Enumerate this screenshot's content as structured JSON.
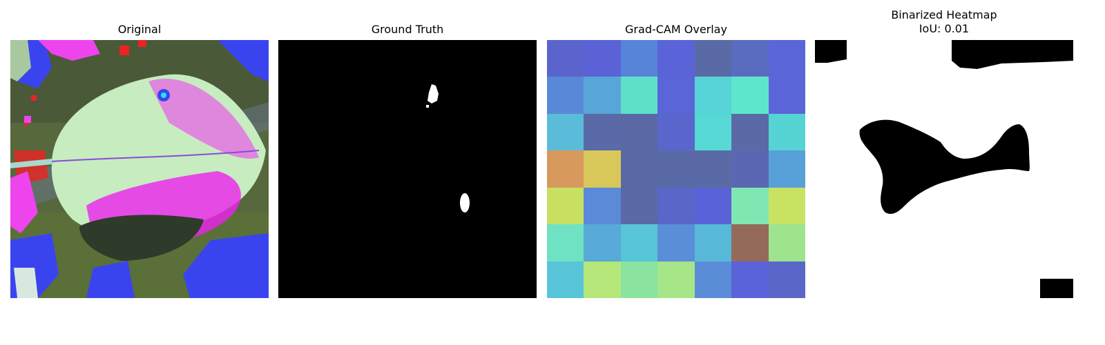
{
  "panels": [
    {
      "title": "Original"
    },
    {
      "title": "Ground Truth"
    },
    {
      "title": "Grad-CAM Overlay"
    },
    {
      "title": "Binarized Heatmap\nIoU: 0.01"
    }
  ],
  "gradcam_grid_colors": [
    [
      "#5a64cc",
      "#5b62d6",
      "#5783d8",
      "#5a64d8",
      "#5a6aa6",
      "#5a6cc0",
      "#5a66d8"
    ],
    [
      "#5a88d8",
      "#58a6d8",
      "#5ee0c8",
      "#5a66d8",
      "#56d4d8",
      "#5ee6cc",
      "#5a66d8"
    ],
    [
      "#5abcd8",
      "#5a6aa8",
      "#5a68a6",
      "#5a66cc",
      "#56d8d4",
      "#5a6aa6",
      "#56d4d4"
    ],
    [
      "#d89a5c",
      "#d8c85a",
      "#5a68a6",
      "#5a6aa6",
      "#5a6aa6",
      "#5a68b4",
      "#58a0d8"
    ],
    [
      "#c8e062",
      "#5a8ad8",
      "#5a6aa6",
      "#5a66c8",
      "#5a62d8",
      "#80e6b2",
      "#c8e262"
    ],
    [
      "#6ee2c2",
      "#58aad8",
      "#58c4d8",
      "#5a8ed8",
      "#58b8d8",
      "#946a5a",
      "#9ee48e"
    ],
    [
      "#58c4d8",
      "#b4e67a",
      "#8ae4a0",
      "#a6e688",
      "#5a8cd8",
      "#5a64d8",
      "#5a66c8"
    ]
  ]
}
